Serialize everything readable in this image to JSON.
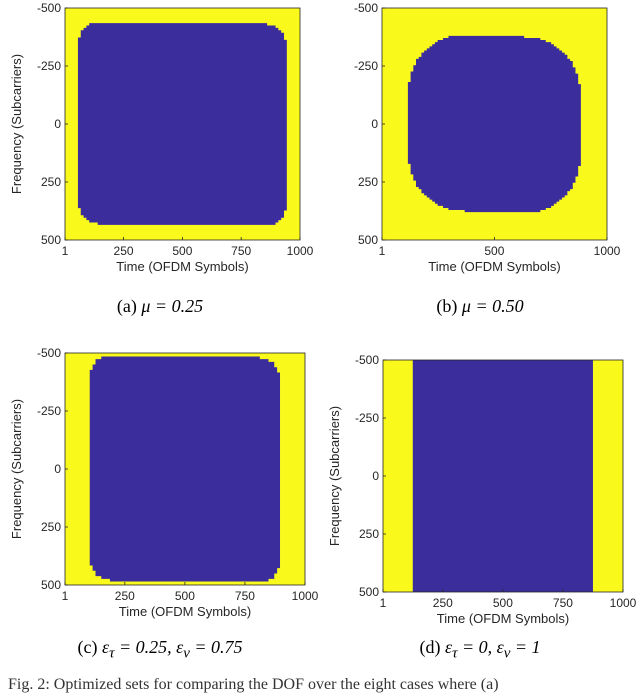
{
  "chart_data": [
    {
      "type": "heatmap",
      "panel": "a",
      "caption": "(a) μ = 0.25",
      "xlabel": "Time (OFDM Symbols)",
      "ylabel": "Frequency (Subcarriers)",
      "xlim": [
        1,
        1000
      ],
      "ylim": [
        -500,
        500
      ],
      "x_ticks": [
        "1",
        "250",
        "500",
        "750",
        "1000"
      ],
      "x_tick_values": [
        1,
        250,
        500,
        750,
        1000
      ],
      "y_ticks": [
        "-500",
        "-250",
        "0",
        "250",
        "500"
      ],
      "y_tick_values": [
        -500,
        -250,
        0,
        250,
        500
      ],
      "background_color": "#f9f91c",
      "region_color": "#3c2d9c",
      "region": {
        "shape": "rounded-square",
        "t_range": [
          60,
          940
        ],
        "f_range": [
          -435,
          435
        ],
        "corner_radius_t": 80,
        "corner_radius_f": 90
      }
    },
    {
      "type": "heatmap",
      "panel": "b",
      "caption": "(b) μ = 0.50",
      "xlabel": "Time (OFDM Symbols)",
      "ylabel": "",
      "xlim": [
        1,
        1000
      ],
      "ylim": [
        -500,
        500
      ],
      "x_ticks": [
        "1",
        "500",
        "1000"
      ],
      "x_tick_values": [
        1,
        500,
        1000
      ],
      "y_ticks": [
        "-500",
        "-250",
        "0",
        "250",
        "500"
      ],
      "y_tick_values": [
        -500,
        -250,
        0,
        250,
        500
      ],
      "background_color": "#f9f91c",
      "region_color": "#3c2d9c",
      "region": {
        "shape": "octagon-circle",
        "t_range": [
          120,
          880
        ],
        "f_range": [
          -380,
          380
        ],
        "corner_radius_t": 250,
        "corner_radius_f": 230
      }
    },
    {
      "type": "heatmap",
      "panel": "c",
      "caption": "(c) ε_τ = 0.25, ε_ν = 0.75",
      "xlabel": "Time (OFDM Symbols)",
      "ylabel": "Frequency (Subcarriers)",
      "xlim": [
        1,
        1000
      ],
      "ylim": [
        -500,
        500
      ],
      "x_ticks": [
        "1",
        "250",
        "500",
        "750",
        "1000"
      ],
      "x_tick_values": [
        1,
        250,
        500,
        750,
        1000
      ],
      "y_ticks": [
        "-500",
        "-250",
        "0",
        "250",
        "500"
      ],
      "y_tick_values": [
        -500,
        -250,
        0,
        250,
        500
      ],
      "background_color": "#f9f91c",
      "region_color": "#3c2d9c",
      "region": {
        "shape": "rounded-rect",
        "t_range": [
          105,
          895
        ],
        "f_range": [
          -485,
          485
        ],
        "corner_radius_t": 80,
        "corner_radius_f": 95
      }
    },
    {
      "type": "heatmap",
      "panel": "d",
      "caption": "(d) ε_τ = 0, ε_ν = 1",
      "xlabel": "Time (OFDM Symbols)",
      "ylabel": "Frequency (Subcarriers)",
      "xlim": [
        1,
        1000
      ],
      "ylim": [
        -500,
        500
      ],
      "x_ticks": [
        "1",
        "250",
        "500",
        "750",
        "1000"
      ],
      "x_tick_values": [
        1,
        250,
        500,
        750,
        1000
      ],
      "y_ticks": [
        "-500",
        "-250",
        "0",
        "250",
        "500"
      ],
      "y_tick_values": [
        -500,
        -250,
        0,
        250,
        500
      ],
      "background_color": "#f9f91c",
      "region_color": "#3c2d9c",
      "region": {
        "shape": "rect",
        "t_range": [
          125,
          875
        ],
        "f_range": [
          -500,
          500
        ],
        "corner_radius_t": 0,
        "corner_radius_f": 0
      }
    }
  ],
  "captions": [
    {
      "prefix": "(a) ",
      "math": "μ = 0.25"
    },
    {
      "prefix": "(b) ",
      "math": "μ = 0.50"
    },
    {
      "prefix": "(c) ",
      "math": "ε<sub>τ</sub> = 0.25, ε<sub>ν</sub> = 0.75"
    },
    {
      "prefix": "(d) ",
      "math": "ε<sub>τ</sub> = 0, ε<sub>ν</sub> = 1"
    }
  ],
  "figure_caption": "Fig. 2: Optimized sets for comparing the DOF over the eight cases where (a)"
}
